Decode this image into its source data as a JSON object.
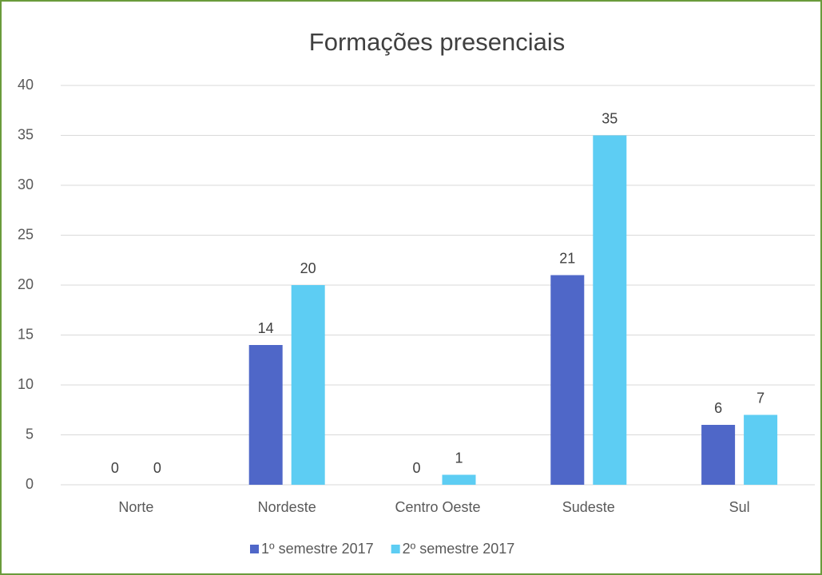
{
  "chart_data": {
    "type": "bar",
    "title": "Formações presenciais",
    "categories": [
      "Norte",
      "Nordeste",
      "Centro Oeste",
      "Sudeste",
      "Sul"
    ],
    "series": [
      {
        "name": "1º semestre 2017",
        "color": "#4f67c8",
        "values": [
          0,
          14,
          0,
          21,
          6
        ]
      },
      {
        "name": "2º semestre 2017",
        "color": "#5dcdf3",
        "values": [
          0,
          20,
          1,
          35,
          7
        ]
      }
    ],
    "ylim": [
      0,
      40
    ],
    "yticks": [
      0,
      5,
      10,
      15,
      20,
      25,
      30,
      35,
      40
    ],
    "grid": true,
    "legend": "bottom"
  }
}
